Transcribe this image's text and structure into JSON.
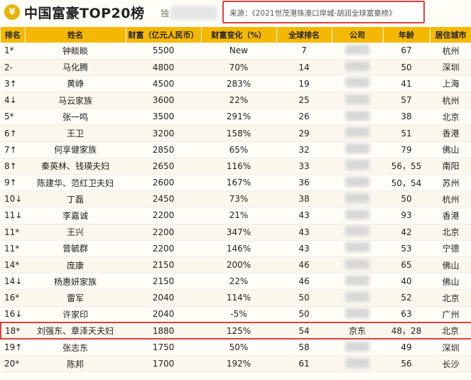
{
  "header": {
    "logo_glyph": "¥",
    "title": "中国富豪TOP20榜",
    "title_suffix": "独",
    "source": "来源：《2021世茂港珠澳口岸城·胡润全球富豪榜》"
  },
  "table": {
    "columns": [
      "排名",
      "姓名",
      "财富（亿元人民币）",
      "财富变化（%）",
      "全球排名",
      "公司",
      "年龄",
      "居住城市"
    ],
    "rows": [
      {
        "rank": "1*",
        "name": "钟睒睒",
        "wealth": "5500",
        "change": "New",
        "global": "7",
        "company": "",
        "age": "67",
        "city": "杭州"
      },
      {
        "rank": "2-",
        "name": "马化腾",
        "wealth": "4800",
        "change": "70%",
        "global": "14",
        "company": "",
        "age": "50",
        "city": "深圳"
      },
      {
        "rank": "3↑",
        "name": "黄峥",
        "wealth": "4500",
        "change": "283%",
        "global": "19",
        "company": "",
        "age": "41",
        "city": "上海"
      },
      {
        "rank": "4↓",
        "name": "马云家族",
        "wealth": "3600",
        "change": "22%",
        "global": "25",
        "company": "",
        "age": "57",
        "city": "杭州"
      },
      {
        "rank": "5*",
        "name": "张一鸣",
        "wealth": "3500",
        "change": "291%",
        "global": "26",
        "company": "",
        "age": "38",
        "city": "北京"
      },
      {
        "rank": "6↑",
        "name": "王卫",
        "wealth": "3200",
        "change": "158%",
        "global": "29",
        "company": "",
        "age": "51",
        "city": "香港"
      },
      {
        "rank": "7↑",
        "name": "何享健家族",
        "wealth": "2850",
        "change": "65%",
        "global": "32",
        "company": "",
        "age": "79",
        "city": "佛山"
      },
      {
        "rank": "8↑",
        "name": "秦英林、钱瑛夫妇",
        "wealth": "2650",
        "change": "116%",
        "global": "33",
        "company": "",
        "age": "56，55",
        "city": "南阳"
      },
      {
        "rank": "9↑",
        "name": "陈建华、范红卫夫妇",
        "wealth": "2600",
        "change": "167%",
        "global": "36",
        "company": "",
        "age": "50，54",
        "city": "苏州"
      },
      {
        "rank": "10↓",
        "name": "丁磊",
        "wealth": "2450",
        "change": "73%",
        "global": "38",
        "company": "",
        "age": "50",
        "city": "杭州"
      },
      {
        "rank": "11↓",
        "name": "李嘉诚",
        "wealth": "2200",
        "change": "21%",
        "global": "43",
        "company": "",
        "age": "93",
        "city": "香港"
      },
      {
        "rank": "11*",
        "name": "王兴",
        "wealth": "2200",
        "change": "347%",
        "global": "43",
        "company": "",
        "age": "42",
        "city": "北京"
      },
      {
        "rank": "11*",
        "name": "曾毓群",
        "wealth": "2200",
        "change": "146%",
        "global": "43",
        "company": "",
        "age": "53",
        "city": "宁德"
      },
      {
        "rank": "14*",
        "name": "庞康",
        "wealth": "2150",
        "change": "200%",
        "global": "46",
        "company": "",
        "age": "65",
        "city": "佛山"
      },
      {
        "rank": "14↓",
        "name": "杨惠妍家族",
        "wealth": "2150",
        "change": "22%",
        "global": "46",
        "company": "",
        "age": "40",
        "city": "佛山"
      },
      {
        "rank": "16*",
        "name": "雷军",
        "wealth": "2040",
        "change": "114%",
        "global": "50",
        "company": "",
        "age": "52",
        "city": "北京"
      },
      {
        "rank": "16↓",
        "name": "许家印",
        "wealth": "2040",
        "change": "-5%",
        "global": "50",
        "company": "",
        "age": "63",
        "city": "广州"
      },
      {
        "rank": "18*",
        "name": "刘强东、章泽天夫妇",
        "wealth": "1880",
        "change": "125%",
        "global": "54",
        "company": "京东",
        "age": "48，28",
        "city": "北京"
      },
      {
        "rank": "19↑",
        "name": "张志东",
        "wealth": "1750",
        "change": "50%",
        "global": "58",
        "company": "",
        "age": "49",
        "city": "深圳"
      },
      {
        "rank": "20*",
        "name": "陈邦",
        "wealth": "1700",
        "change": "192%",
        "global": "61",
        "company": "",
        "age": "56",
        "city": "长沙"
      }
    ],
    "highlight_row": 17
  },
  "colors": {
    "header_bg": "#f5b800",
    "highlight_border": "#e04040"
  }
}
